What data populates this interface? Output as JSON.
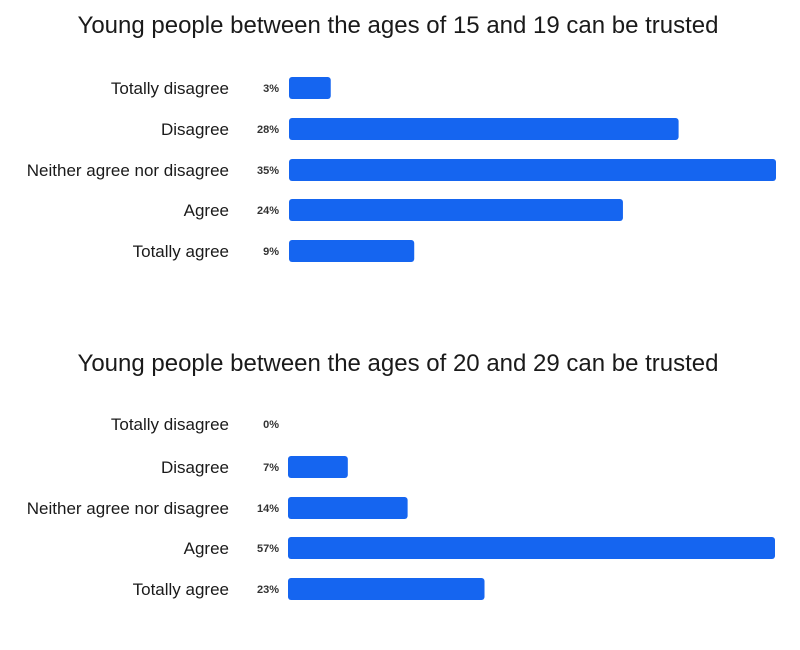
{
  "chart_data": [
    {
      "type": "bar",
      "orientation": "horizontal",
      "title": "Young people between the ages of 15 and 19 can be trusted",
      "categories": [
        "Totally disagree",
        "Disagree",
        "Neither agree nor disagree",
        "Agree",
        "Totally agree"
      ],
      "values": [
        3,
        28,
        35,
        24,
        9
      ],
      "value_labels": [
        "3%",
        "28%",
        "35%",
        "24%",
        "9%"
      ],
      "unit": "%",
      "color": "#1565f0",
      "grid": false
    },
    {
      "type": "bar",
      "orientation": "horizontal",
      "title": "Young people between the ages of 20 and 29 can be trusted",
      "categories": [
        "Totally disagree",
        "Disagree",
        "Neither agree nor disagree",
        "Agree",
        "Totally agree"
      ],
      "values": [
        0,
        7,
        14,
        57,
        23
      ],
      "value_labels": [
        "0%",
        "7%",
        "14%",
        "57%",
        "23%"
      ],
      "unit": "%",
      "color": "#1565f0",
      "grid": false
    }
  ]
}
